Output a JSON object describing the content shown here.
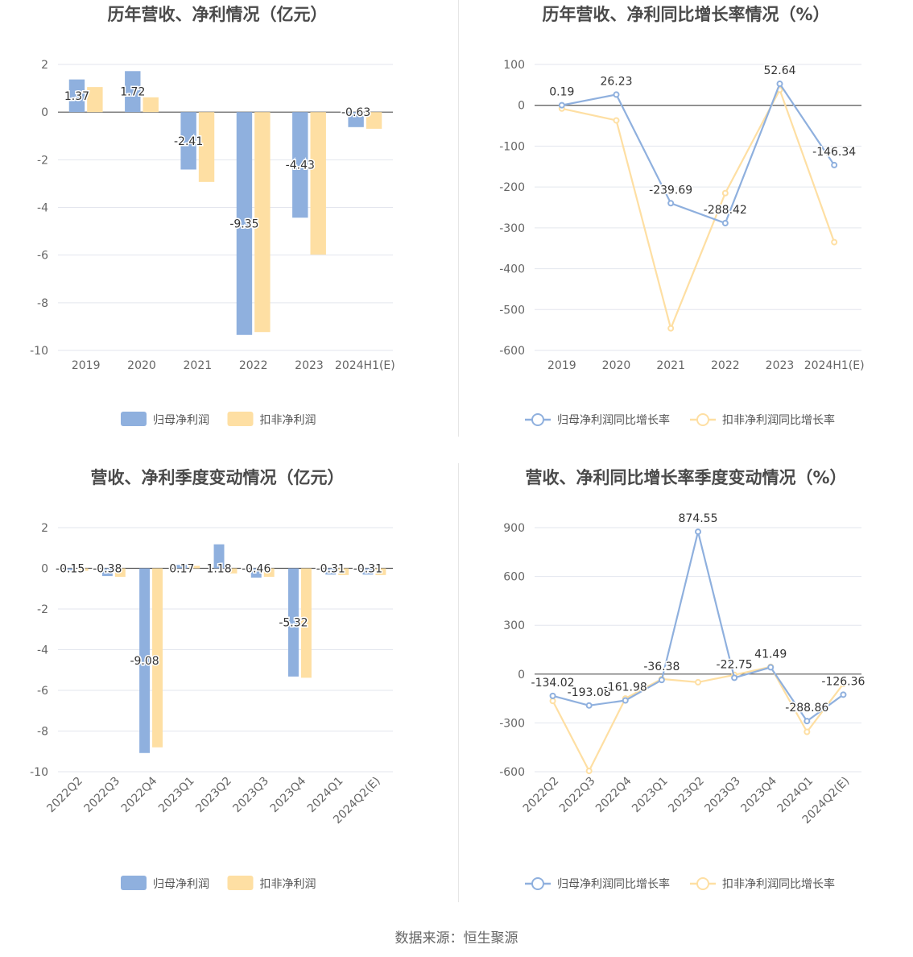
{
  "source": "数据来源：恒生聚源",
  "chart_data": [
    {
      "type": "bar",
      "title": "历年营收、净利情况（亿元）",
      "categories": [
        "2019",
        "2020",
        "2021",
        "2022",
        "2023",
        "2024H1(E)"
      ],
      "ylim": [
        -10,
        2
      ],
      "yticks": [
        2,
        0,
        -2,
        -4,
        -6,
        -8,
        -10
      ],
      "series": [
        {
          "name": "归母净利润",
          "color": "#8fb0de",
          "values": [
            1.37,
            1.72,
            -2.41,
            -9.35,
            -4.43,
            -0.63
          ],
          "labels": [
            "1.37",
            "1.72",
            "-2.41",
            "-9.35",
            "-4.43",
            "-0.63"
          ]
        },
        {
          "name": "扣非净利润",
          "color": "#fedfa3",
          "values": [
            1.05,
            0.62,
            -2.93,
            -9.23,
            -5.98,
            -0.7
          ]
        }
      ],
      "legend": "bottom",
      "grid": true
    },
    {
      "type": "line",
      "title": "历年营收、净利同比增长率情况（%）",
      "categories": [
        "2019",
        "2020",
        "2021",
        "2022",
        "2023",
        "2024H1(E)"
      ],
      "ylim": [
        -600,
        100
      ],
      "yticks": [
        100,
        0,
        -100,
        -200,
        -300,
        -400,
        -500,
        -600
      ],
      "series": [
        {
          "name": "归母净利润同比增长率",
          "color": "#8fb0de",
          "values": [
            0.19,
            26.23,
            -239.69,
            -288.42,
            52.64,
            -146.34
          ],
          "labels": [
            "0.19",
            "26.23",
            "-239.69",
            "-288.42",
            "52.64",
            "-146.34"
          ]
        },
        {
          "name": "扣非净利润同比增长率",
          "color": "#fedfa3",
          "values": [
            -8,
            -37,
            -546,
            -215,
            38,
            -335
          ]
        }
      ],
      "legend": "bottom",
      "grid": true
    },
    {
      "type": "bar",
      "title": "营收、净利季度变动情况（亿元）",
      "categories": [
        "2022Q2",
        "2022Q3",
        "2022Q4",
        "2023Q1",
        "2023Q2",
        "2023Q3",
        "2023Q4",
        "2024Q1",
        "2024Q2(E)"
      ],
      "ylim": [
        -10,
        2
      ],
      "yticks": [
        2,
        0,
        -2,
        -4,
        -6,
        -8,
        -10
      ],
      "series": [
        {
          "name": "归母净利润",
          "color": "#8fb0de",
          "values": [
            -0.15,
            -0.38,
            -9.08,
            0.17,
            1.18,
            -0.46,
            -5.32,
            -0.31,
            -0.31
          ],
          "labels": [
            "-0.15",
            "-0.38",
            "-9.08",
            "0.17",
            "1.18",
            "-0.46",
            "-5.32",
            "-0.31",
            "-0.31"
          ]
        },
        {
          "name": "扣非净利润",
          "color": "#fedfa3",
          "values": [
            -0.12,
            -0.42,
            -8.8,
            0.12,
            -0.25,
            -0.42,
            -5.38,
            -0.33,
            -0.33
          ]
        }
      ],
      "legend": "bottom",
      "grid": true
    },
    {
      "type": "line",
      "title": "营收、净利同比增长率季度变动情况（%）",
      "categories": [
        "2022Q2",
        "2022Q3",
        "2022Q4",
        "2023Q1",
        "2023Q2",
        "2023Q3",
        "2023Q4",
        "2024Q1",
        "2024Q2(E)"
      ],
      "ylim": [
        -600,
        900
      ],
      "yticks": [
        900,
        600,
        300,
        0,
        -300,
        -600
      ],
      "series": [
        {
          "name": "归母净利润同比增长率",
          "color": "#8fb0de",
          "values": [
            -134.02,
            -193.08,
            -161.98,
            -36.38,
            874.55,
            -22.75,
            41.49,
            -288.86,
            -126.36
          ],
          "labels": [
            "-134.02",
            "-193.08",
            "-161.98",
            "-36.38",
            "874.55",
            "-22.75",
            "41.49",
            "-288.86",
            "-126.36"
          ]
        },
        {
          "name": "扣非净利润同比增长率",
          "color": "#fedfa3",
          "values": [
            -165,
            -595,
            -150,
            -30,
            -50,
            -5,
            45,
            -355,
            -60
          ]
        }
      ],
      "legend": "bottom",
      "grid": true
    }
  ]
}
